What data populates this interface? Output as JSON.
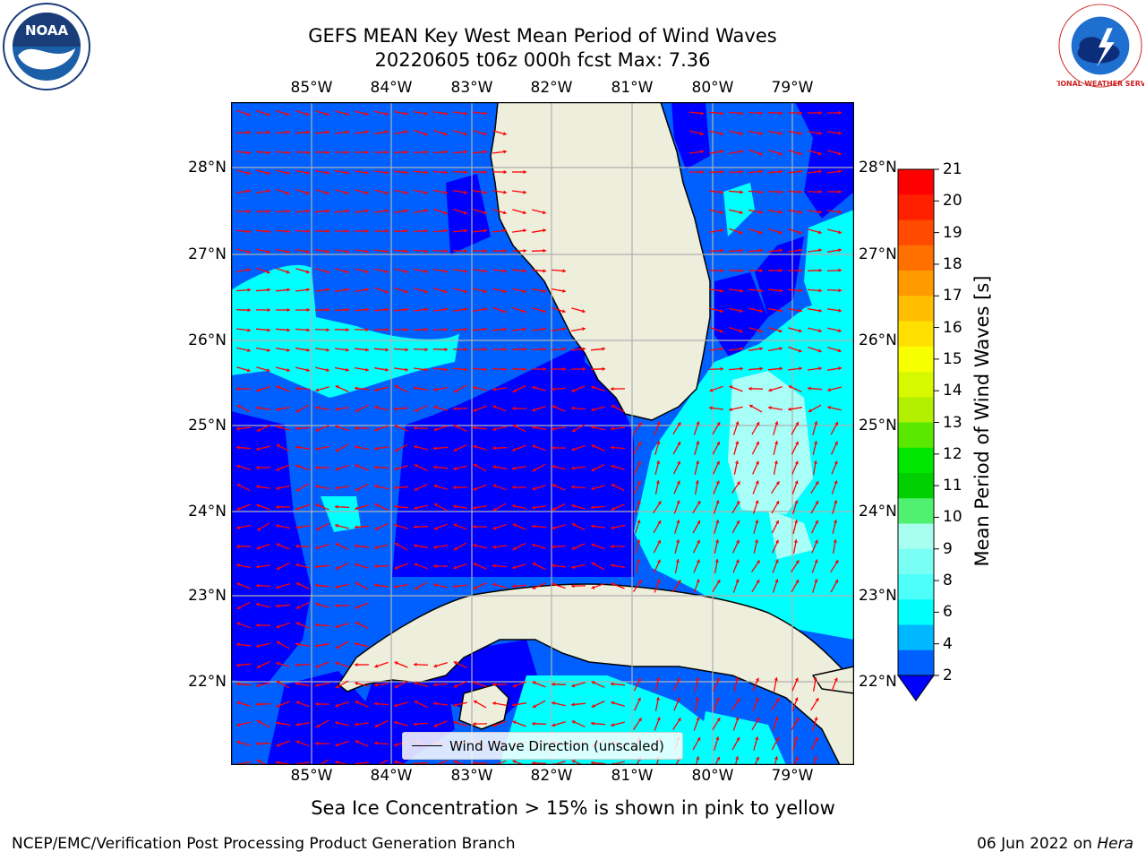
{
  "title": {
    "line1": "GEFS MEAN Key West Mean Period of Wind Waves",
    "line2": "20220605 t06z 000h fcst   Max: 7.36"
  },
  "longitude_labels": [
    "85°W",
    "84°W",
    "83°W",
    "82°W",
    "81°W",
    "80°W",
    "79°W"
  ],
  "latitude_labels": [
    "28°N",
    "27°N",
    "26°N",
    "25°N",
    "24°N",
    "23°N",
    "22°N"
  ],
  "colorbar": {
    "title": "Mean Period of Wind Waves [s]",
    "tick_labels": [
      "21",
      "20",
      "19",
      "18",
      "17",
      "16",
      "15",
      "14",
      "13",
      "12",
      "11",
      "10",
      "9",
      "8",
      "6",
      "4",
      "2"
    ],
    "colors": [
      "#ff0000",
      "#ff2000",
      "#ff4a00",
      "#ff7000",
      "#ff9a00",
      "#ffbe00",
      "#ffe000",
      "#f8ff00",
      "#d8f800",
      "#b2f000",
      "#5ae800",
      "#00e800",
      "#00d000",
      "#50f070",
      "#a8fff0",
      "#7afff6",
      "#4cfff8",
      "#00ffff",
      "#00b8ff",
      "#0060ff"
    ],
    "extend_color": "#0000ff"
  },
  "legend": {
    "label": "Wind Wave Direction (unscaled)"
  },
  "sea_ice_note": "Sea Ice Concentration > 15% is shown in pink to yellow",
  "footer": {
    "left": "NCEP/EMC/Verification Post Processing Product Generation Branch",
    "date": "06 Jun 2022 on ",
    "host": "Hera"
  },
  "logos": {
    "noaa_text": "NOAA",
    "nws_text": "NATIONAL WEATHER SERVICE"
  },
  "colors": {
    "land": "#eeeedd",
    "period_2_4": "#0060ff",
    "period_below_2": "#0000ff",
    "period_4_6": "#00ffff",
    "period_6_8": "#a8fff8",
    "arrow": "#ff0000"
  }
}
